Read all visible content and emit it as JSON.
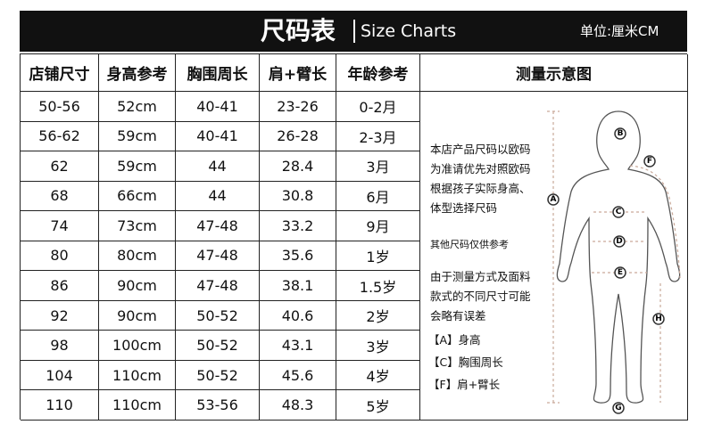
{
  "header": {
    "title": "尺码表",
    "subtitle": "Size Charts",
    "unit": "单位:厘米CM"
  },
  "table": {
    "columns": [
      "店铺尺寸",
      "身高参考",
      "胸围周长",
      "肩+臂长",
      "年龄参考"
    ],
    "rows": [
      [
        "50-56",
        "52cm",
        "40-41",
        "23-26",
        "0-2月"
      ],
      [
        "56-62",
        "59cm",
        "40-41",
        "26-28",
        "2-3月"
      ],
      [
        "62",
        "59cm",
        "44",
        "28.4",
        "3月"
      ],
      [
        "68",
        "66cm",
        "44",
        "30.8",
        "6月"
      ],
      [
        "74",
        "73cm",
        "47-48",
        "33.2",
        "9月"
      ],
      [
        "80",
        "80cm",
        "47-48",
        "35.6",
        "1岁"
      ],
      [
        "86",
        "90cm",
        "47-48",
        "38.1",
        "1.5岁"
      ],
      [
        "92",
        "90cm",
        "50-52",
        "40.6",
        "2岁"
      ],
      [
        "98",
        "100cm",
        "50-52",
        "43.1",
        "3岁"
      ],
      [
        "104",
        "110cm",
        "50-52",
        "45.6",
        "4岁"
      ],
      [
        "110",
        "110cm",
        "53-56",
        "48.3",
        "5岁"
      ]
    ]
  },
  "diagram": {
    "title": "测量示意图",
    "notes": [
      [
        "本店产品尺码以欧码",
        "为准请优先对照欧码",
        "根据孩子实际身高、",
        "体型选择尺码"
      ],
      [
        "其他尺码仅供参考"
      ],
      [
        "由于测量方式及面料",
        "款式的不同尺寸可能",
        "会略有误差"
      ]
    ],
    "markers": [
      "A",
      "B",
      "C",
      "D",
      "E",
      "F",
      "G",
      "H"
    ],
    "legend": [
      "【A】身高",
      "【C】胸围周长",
      "【F】肩+臂长"
    ]
  }
}
